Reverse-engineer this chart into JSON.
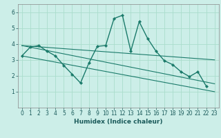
{
  "xlabel": "Humidex (Indice chaleur)",
  "bg_color": "#cceee8",
  "grid_color": "#aaddcc",
  "line_color": "#1a7a6a",
  "xlim": [
    -0.5,
    23.5
  ],
  "ylim": [
    0.0,
    6.5
  ],
  "xticks": [
    0,
    1,
    2,
    3,
    4,
    5,
    6,
    7,
    8,
    9,
    10,
    11,
    12,
    13,
    14,
    15,
    16,
    17,
    18,
    19,
    20,
    21,
    22,
    23
  ],
  "yticks": [
    1,
    2,
    3,
    4,
    5,
    6
  ],
  "main_line": {
    "x": [
      0,
      1,
      2,
      3,
      4,
      5,
      6,
      7,
      8,
      9,
      10,
      11,
      12,
      13,
      14,
      15,
      16,
      17,
      18,
      19,
      20,
      21,
      22
    ],
    "y": [
      3.25,
      3.8,
      3.9,
      3.55,
      3.25,
      2.65,
      2.1,
      1.55,
      2.8,
      3.85,
      3.9,
      5.6,
      5.8,
      3.55,
      5.4,
      4.35,
      3.55,
      2.95,
      2.7,
      2.25,
      1.95,
      2.25,
      1.35
    ]
  },
  "straight_lines": [
    {
      "x": [
        0,
        23
      ],
      "y": [
        3.25,
        1.0
      ]
    },
    {
      "x": [
        0,
        23
      ],
      "y": [
        3.9,
        3.0
      ]
    },
    {
      "x": [
        0,
        23
      ],
      "y": [
        3.9,
        1.5
      ]
    }
  ]
}
